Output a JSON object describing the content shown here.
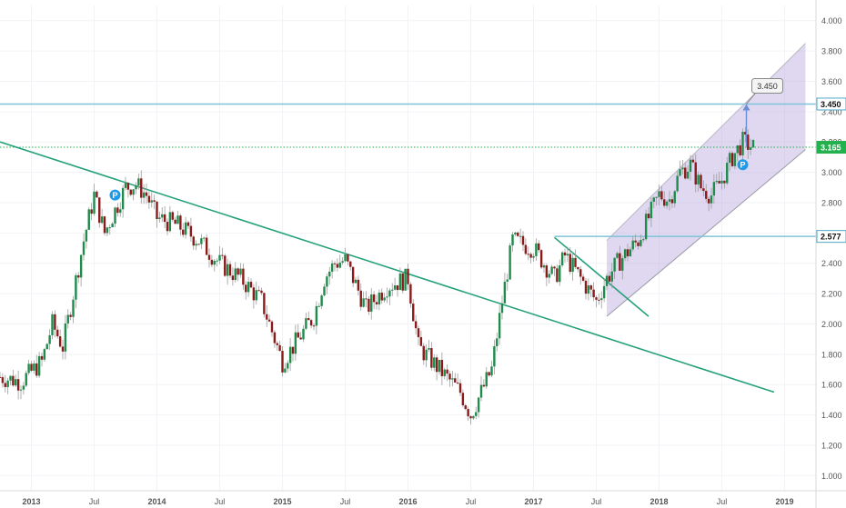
{
  "chart_data": {
    "type": "candlestick",
    "title": "",
    "xlabel": "",
    "ylabel": "",
    "ylim": [
      0.9,
      4.1
    ],
    "y_ticks": [
      "4.000",
      "3.800",
      "3.600",
      "3.450",
      "3.400",
      "3.200",
      "3.000",
      "2.800",
      "2.600",
      "2.400",
      "2.200",
      "2.000",
      "1.800",
      "1.600",
      "1.400",
      "1.200",
      "1.000"
    ],
    "x_ticks": [
      "2013",
      "Jul",
      "2014",
      "Jul",
      "2015",
      "Jul",
      "2016",
      "Jul",
      "2017",
      "Jul",
      "2018",
      "Jul",
      "2019"
    ],
    "x_tick_dates": [
      "2013-01",
      "2013-07",
      "2014-01",
      "2014-07",
      "2015-01",
      "2015-07",
      "2016-01",
      "2016-07",
      "2017-01",
      "2017-07",
      "2018-01",
      "2018-07",
      "2019-01"
    ],
    "xlim": [
      "2012-10",
      "2019-04"
    ],
    "grid": true,
    "colors": {
      "up": "#1f8b4c",
      "down": "#8b1a1a",
      "trendline": "#26a17b",
      "hline": "#7ec4d8",
      "channel": "#b9a9dd",
      "price_badge": "#22b14c",
      "target_badge": "#4fa9c6",
      "pivot_marker": "#1e9be9"
    },
    "price_series": {
      "x": [
        "2012-10",
        "2012-12",
        "2013-02",
        "2013-03",
        "2013-04",
        "2013-05",
        "2013-06",
        "2013-07",
        "2013-08",
        "2013-09",
        "2013-10",
        "2013-11",
        "2013-12",
        "2014-01",
        "2014-03",
        "2014-05",
        "2014-07",
        "2014-09",
        "2014-11",
        "2015-01",
        "2015-02",
        "2015-04",
        "2015-05",
        "2015-06",
        "2015-07",
        "2015-09",
        "2015-11",
        "2016-01",
        "2016-02",
        "2016-04",
        "2016-06",
        "2016-07",
        "2016-08",
        "2016-09",
        "2016-10",
        "2016-11",
        "2017-01",
        "2017-03",
        "2017-04",
        "2017-06",
        "2017-07",
        "2017-08",
        "2017-09",
        "2017-11",
        "2018-01",
        "2018-02",
        "2018-03",
        "2018-04",
        "2018-05",
        "2018-06",
        "2018-07",
        "2018-08",
        "2018-09",
        "2018-10"
      ],
      "values": [
        1.65,
        1.62,
        1.75,
        2.0,
        1.85,
        2.2,
        2.55,
        2.85,
        2.6,
        2.75,
        2.9,
        2.92,
        2.85,
        2.7,
        2.65,
        2.55,
        2.4,
        2.3,
        2.15,
        1.75,
        1.85,
        2.05,
        2.3,
        2.4,
        2.42,
        2.1,
        2.25,
        2.3,
        1.85,
        1.7,
        1.55,
        1.4,
        1.55,
        1.7,
        2.15,
        2.55,
        2.5,
        2.3,
        2.45,
        2.25,
        2.15,
        2.3,
        2.4,
        2.55,
        2.85,
        2.82,
        3.0,
        3.05,
        2.9,
        2.85,
        2.95,
        3.1,
        3.2,
        3.165
      ]
    },
    "annotations": {
      "current_price": "3.165",
      "target_price": "3.450",
      "resistance_level": "2.577",
      "pivot_label": "P",
      "long_trendline": {
        "x": [
          "2012-10",
          "2018-12"
        ],
        "y": [
          3.2,
          1.55
        ]
      },
      "short_trendline": {
        "x": [
          "2017-03",
          "2017-12"
        ],
        "y": [
          2.57,
          2.05
        ]
      },
      "resistance_line": {
        "x": [
          "2017-03",
          "2019-04"
        ],
        "y": [
          2.577,
          2.577
        ]
      },
      "target_line": {
        "x": [
          "2012-10",
          "2019-04"
        ],
        "y": [
          3.45,
          3.45
        ]
      },
      "current_line": {
        "x": [
          "2012-10",
          "2019-04"
        ],
        "y": [
          3.165,
          3.165
        ]
      },
      "channel": {
        "lower": {
          "x": [
            "2017-08",
            "2019-03"
          ],
          "y": [
            2.05,
            3.15
          ]
        },
        "upper": {
          "x": [
            "2017-08",
            "2019-03"
          ],
          "y": [
            2.55,
            3.85
          ]
        }
      },
      "pivots": [
        {
          "x": "2013-09",
          "y": 2.85
        },
        {
          "x": "2018-09",
          "y": 3.05
        }
      ],
      "target_arrow": {
        "x": "2018-09",
        "y_from": 3.17,
        "y_to": 3.45
      }
    }
  }
}
